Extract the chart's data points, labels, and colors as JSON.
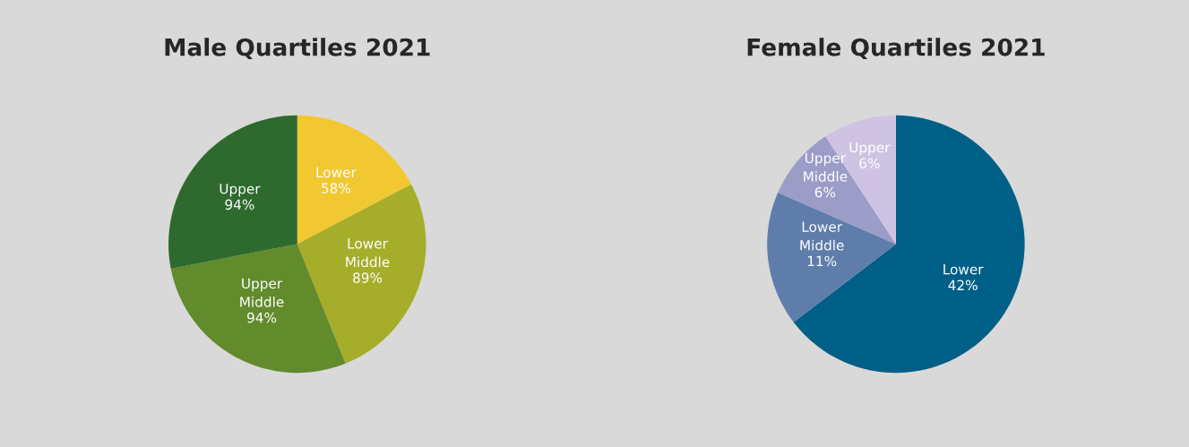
{
  "chart_data": [
    {
      "type": "pie",
      "title": "Male Quartiles 2021",
      "categories": [
        "Lower",
        "Lower\nMiddle",
        "Upper\nMiddle",
        "Upper"
      ],
      "values": [
        58,
        89,
        94,
        94
      ],
      "colors": [
        "#f2c832",
        "#a6ad2a",
        "#628b2c",
        "#2e6a2e"
      ],
      "value_labels": [
        "58%",
        "89%",
        "94%",
        "94%"
      ]
    },
    {
      "type": "pie",
      "title": "Female Quartiles 2021",
      "categories": [
        "Lower",
        "Lower\nMiddle",
        "Upper\nMiddle",
        "Upper"
      ],
      "values": [
        42,
        11,
        6,
        6
      ],
      "colors": [
        "#005f87",
        "#5f7daa",
        "#9c9cc8",
        "#cfc3e3"
      ],
      "value_labels": [
        "42%",
        "11%",
        "6%",
        "6%"
      ]
    }
  ]
}
